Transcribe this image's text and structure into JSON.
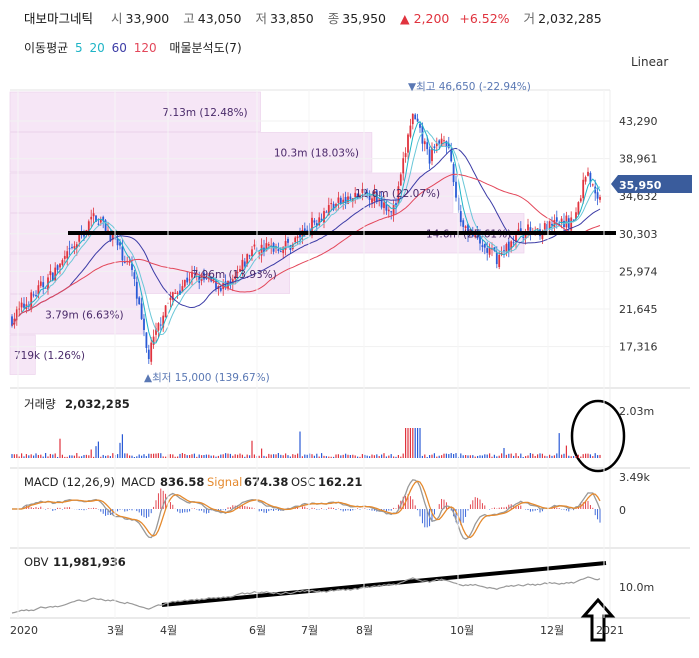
{
  "header": {
    "name": "대보마그네틱",
    "open_label": "시",
    "open": "33,900",
    "high_label": "고",
    "high": "43,050",
    "low_label": "저",
    "low": "33,850",
    "close_label": "종",
    "close": "35,950",
    "change": "▲ 2,200",
    "change_pct": "+6.52%",
    "volume_label": "거",
    "volume": "2,032,285"
  },
  "ma_legend": {
    "label": "이동평균",
    "periods": [
      "5",
      "20",
      "60",
      "120"
    ],
    "colors": [
      "#1fb4c6",
      "#1fb4c6",
      "#3c3ca6",
      "#e3475a"
    ],
    "sales_label": "매물분석도(7)"
  },
  "scale_button": "Linear",
  "chart_data": {
    "type": "candlestick",
    "price_axis": {
      "ticks": [
        "43,290",
        "38,961",
        "34,632",
        "30,303",
        "25,974",
        "21,645",
        "17,316"
      ],
      "tick_values": [
        43290,
        38961,
        34632,
        30303,
        25974,
        21645,
        17316
      ],
      "current_price_label": "35,950",
      "current_price": 35950
    },
    "x_labels": [
      "2020",
      "3월",
      "4월",
      "6월",
      "7월",
      "8월",
      "10월",
      "12월",
      "2021"
    ],
    "annotations": {
      "high": "▼최고 46,650 (-22.94%)",
      "low": "▲최저 15,000 (139.67%)"
    },
    "volume_profile": [
      {
        "label": "7.13m (12.48%)",
        "pct": 12.48
      },
      {
        "label": "10.3m (18.03%)",
        "pct": 18.03
      },
      {
        "label": "12.6m (22.07%)",
        "pct": 22.07
      },
      {
        "label": "14.6m (25.61%)",
        "pct": 25.61
      },
      {
        "label": "7.96m (13.93%)",
        "pct": 13.93
      },
      {
        "label": "3.79m (6.63%)",
        "pct": 6.63
      },
      {
        "label": "719k (1.26%)",
        "pct": 1.26
      }
    ],
    "volume_panel": {
      "label": "거래량",
      "value": "2,032,285",
      "axis_label": "2.03m"
    },
    "macd_panel": {
      "label": "MACD (12,26,9)",
      "macd_label": "MACD",
      "macd": "836.58",
      "signal_label": "Signal",
      "signal": "674.38",
      "osc_label": "OSC",
      "osc": "162.21",
      "axis_top": "3.49k",
      "axis_zero": "0",
      "macd_color": "#999999",
      "signal_color": "#e58a2e"
    },
    "obv_panel": {
      "label": "OBV",
      "value": "11,981,936",
      "axis_label": "10.0m"
    }
  },
  "colors": {
    "up": "#e0333e",
    "down": "#2a5ad6",
    "profile": "#f6e6f6",
    "price_tag": "#3a5c9c"
  }
}
